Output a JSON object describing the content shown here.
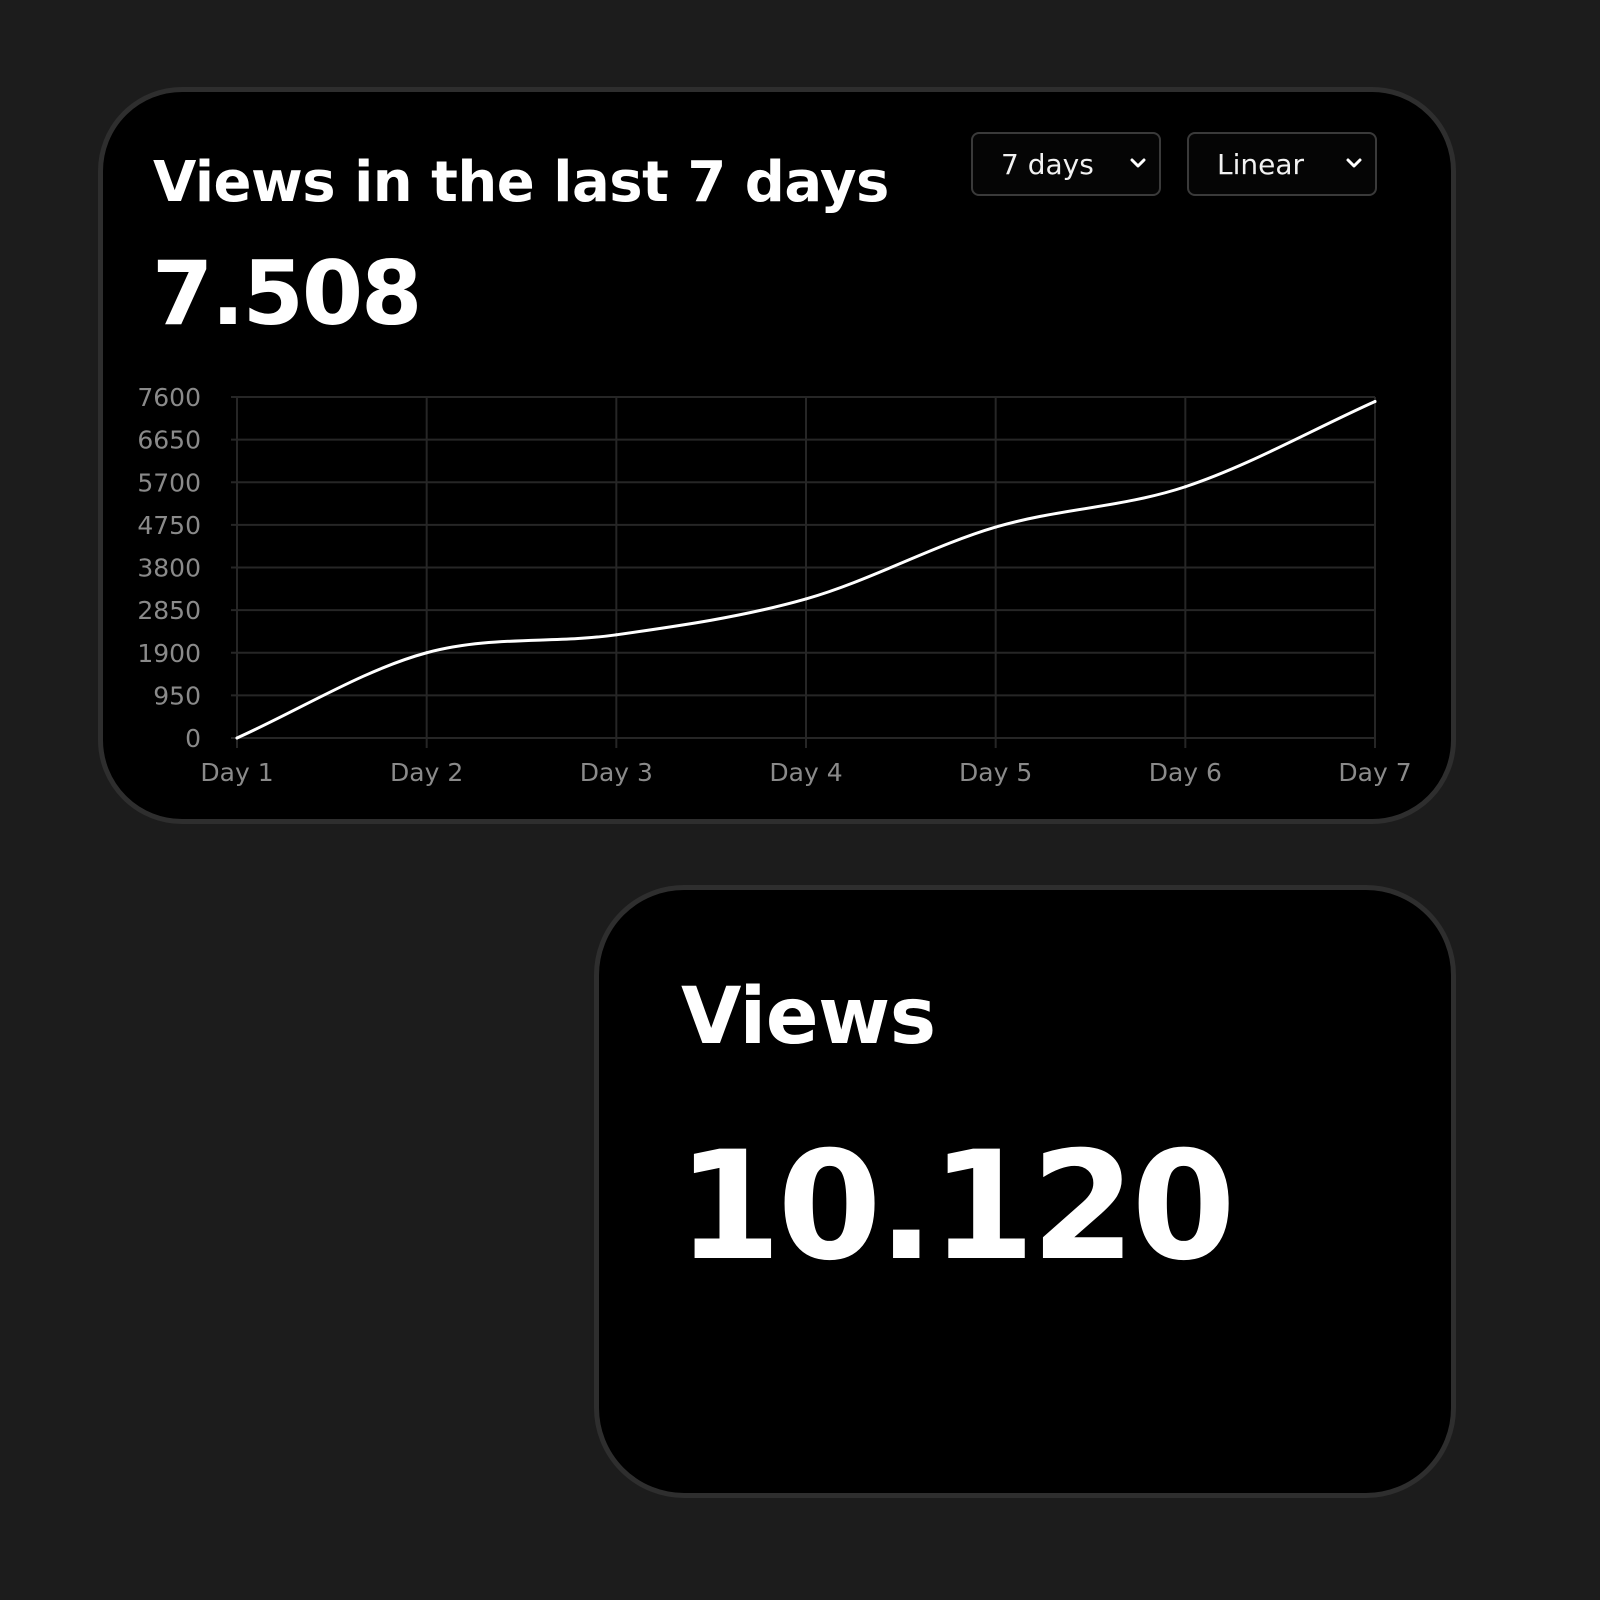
{
  "chart_card": {
    "title": "Views in the last 7 days",
    "total": "7.508",
    "range_select": {
      "value": "7 days"
    },
    "scale_select": {
      "value": "Linear"
    }
  },
  "views_card": {
    "title": "Views",
    "total": "10.120"
  },
  "colors": {
    "background": "#1c1c1c",
    "card": "#000000",
    "card_border": "#2e2e2e",
    "line": "#ffffff",
    "grid": "#262626",
    "tick_text": "#8a8a8a"
  },
  "chart_data": {
    "type": "line",
    "categories": [
      "Day 1",
      "Day 2",
      "Day 3",
      "Day 4",
      "Day 5",
      "Day 6",
      "Day 7"
    ],
    "series": [
      {
        "values": [
          0,
          1900,
          2300,
          3100,
          4700,
          5600,
          7500
        ]
      }
    ],
    "yticks": [
      0,
      950,
      1900,
      2850,
      3800,
      4750,
      5700,
      6650,
      7600
    ],
    "ylim": [
      0,
      7600
    ],
    "grid": true,
    "title": "",
    "xlabel": "",
    "ylabel": ""
  }
}
